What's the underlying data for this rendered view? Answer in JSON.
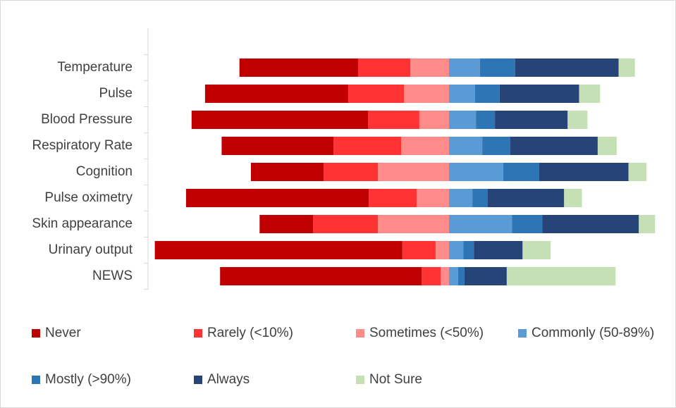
{
  "chart_data": {
    "type": "diverging-bar",
    "categories": [
      "Temperature",
      "Pulse",
      "Blood Pressure",
      "Respiratory Rate",
      "Cognition",
      "Pulse oximetry",
      "Skin appearance",
      "Urinary output",
      "NEWS"
    ],
    "series": [
      {
        "name": "Never",
        "color": "#c00000",
        "values": [
          30.0,
          36.2,
          44.6,
          28.3,
          18.4,
          46.2,
          13.5,
          62.6,
          51.0
        ]
      },
      {
        "name": "Rarely (<10%)",
        "color": "#ff3333",
        "values": [
          13.2,
          14.1,
          13.0,
          17.1,
          13.7,
          12.1,
          16.4,
          8.4,
          4.8
        ]
      },
      {
        "name": "Sometimes (<50%)",
        "color": "#ff8b8b",
        "values": [
          9.8,
          11.4,
          7.5,
          12.1,
          18.0,
          8.2,
          18.0,
          3.4,
          2.1
        ]
      },
      {
        "name": "Commonly (50-89%)",
        "color": "#5b9bd5",
        "values": [
          7.8,
          6.6,
          6.8,
          8.4,
          13.7,
          5.9,
          15.9,
          3.6,
          2.3
        ]
      },
      {
        "name": "Mostly (>90%)",
        "color": "#2e75b6",
        "values": [
          8.9,
          6.2,
          4.8,
          7.1,
          9.1,
          3.9,
          7.7,
          2.7,
          1.6
        ]
      },
      {
        "name": "Always",
        "color": "#264478",
        "values": [
          26.2,
          20.1,
          18.4,
          22.1,
          22.6,
          19.3,
          24.4,
          12.3,
          10.7
        ]
      },
      {
        "name": "Not Sure",
        "color": "#c5e0b4",
        "values": [
          4.1,
          5.3,
          5.0,
          4.8,
          4.5,
          4.5,
          4.1,
          7.1,
          27.5
        ]
      }
    ]
  }
}
